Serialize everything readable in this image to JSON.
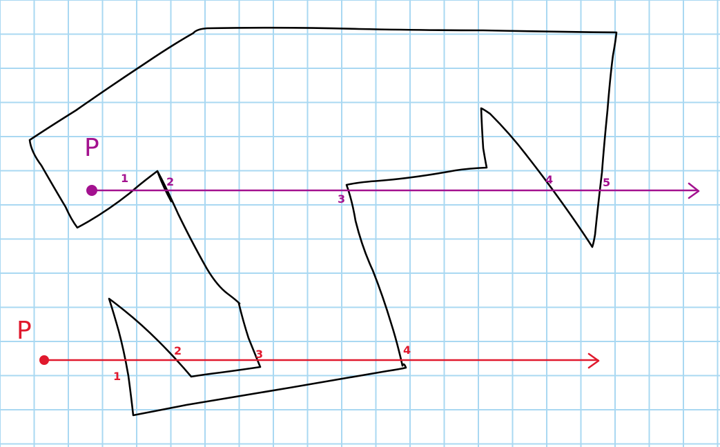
{
  "colors": {
    "background": "#ffffff",
    "grid": "#a9d8f2",
    "polygon": "#000000",
    "ray_top": "#a3118f",
    "ray_bottom": "#e0192d"
  },
  "top_figure": {
    "point_label": "P",
    "crossing_labels": [
      "1",
      "2",
      "3",
      "4",
      "5"
    ]
  },
  "bottom_figure": {
    "point_label": "P",
    "crossing_labels": [
      "1",
      "2",
      "3",
      "4"
    ]
  }
}
